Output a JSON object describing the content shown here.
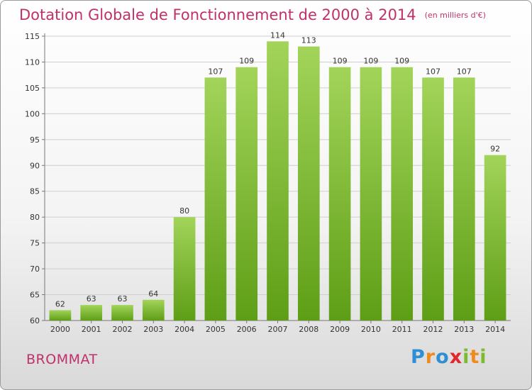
{
  "chart_data": {
    "type": "bar",
    "title": "Dotation Globale de Fonctionnement de 2000 à 2014",
    "subtitle": "(en milliers d'€)",
    "categories": [
      "2000",
      "2001",
      "2002",
      "2003",
      "2004",
      "2005",
      "2006",
      "2007",
      "2008",
      "2009",
      "2010",
      "2011",
      "2012",
      "2013",
      "2014"
    ],
    "values": [
      62,
      63,
      63,
      64,
      80,
      107,
      109,
      114,
      113,
      109,
      109,
      109,
      107,
      107,
      92
    ],
    "ylim": [
      60,
      115
    ],
    "yticks": [
      60,
      65,
      70,
      75,
      80,
      85,
      90,
      95,
      100,
      105,
      110,
      115
    ],
    "grid": true,
    "bar_color": "#8cc63f",
    "xlabel": "",
    "ylabel": ""
  },
  "footer": {
    "commune": "BROMMAT",
    "logo": "Proxiti"
  },
  "colors": {
    "title": "#c0306a",
    "accent": "#8cc63f"
  }
}
